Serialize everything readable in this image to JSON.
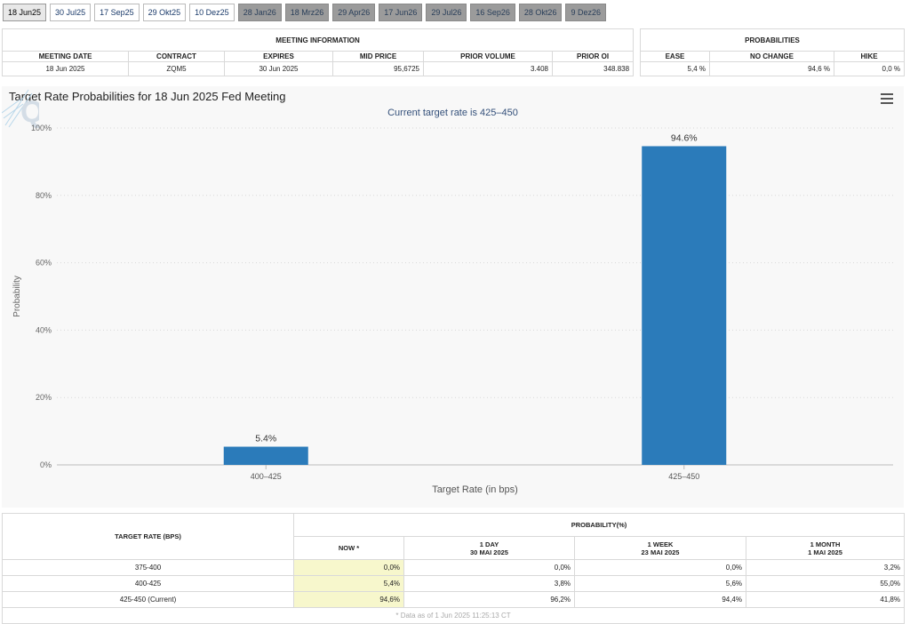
{
  "tabs": [
    {
      "label": "18 Jun25",
      "state": "selected"
    },
    {
      "label": "30 Jul25",
      "state": "enabled"
    },
    {
      "label": "17 Sep25",
      "state": "enabled"
    },
    {
      "label": "29 Okt25",
      "state": "enabled"
    },
    {
      "label": "10 Dez25",
      "state": "enabled"
    },
    {
      "label": "28 Jan26",
      "state": "disabled"
    },
    {
      "label": "18 Mrz26",
      "state": "disabled"
    },
    {
      "label": "29 Apr26",
      "state": "disabled"
    },
    {
      "label": "17 Jun26",
      "state": "disabled"
    },
    {
      "label": "29 Jul26",
      "state": "disabled"
    },
    {
      "label": "16 Sep26",
      "state": "disabled"
    },
    {
      "label": "28 Okt26",
      "state": "disabled"
    },
    {
      "label": "9 Dez26",
      "state": "disabled"
    }
  ],
  "meeting_info": {
    "title": "MEETING INFORMATION",
    "headers": [
      "MEETING DATE",
      "CONTRACT",
      "EXPIRES",
      "MID PRICE",
      "PRIOR VOLUME",
      "PRIOR OI"
    ],
    "row": [
      "18 Jun 2025",
      "ZQM5",
      "30 Jun 2025",
      "95,6725",
      "3.408",
      "348.838"
    ]
  },
  "probabilities": {
    "title": "PROBABILITIES",
    "headers": [
      "EASE",
      "NO CHANGE",
      "HIKE"
    ],
    "row": [
      "5,4 %",
      "94,6 %",
      "0,0 %"
    ]
  },
  "chart_data": {
    "type": "bar",
    "title": "Target Rate Probabilities for 18 Jun 2025 Fed Meeting",
    "subtitle": "Current target rate is 425–450",
    "categories": [
      "400–425",
      "425–450"
    ],
    "values": [
      5.4,
      94.6
    ],
    "data_labels": [
      "5.4%",
      "94.6%"
    ],
    "xlabel": "Target Rate (in bps)",
    "ylabel": "Probability",
    "ylim": [
      0,
      100
    ],
    "yticks": [
      0,
      20,
      40,
      60,
      80,
      100
    ],
    "ytick_labels": [
      "0%",
      "20%",
      "40%",
      "60%",
      "80%",
      "100%"
    ],
    "grid": true,
    "bar_color": "#2b7bba"
  },
  "rate_table": {
    "col_target": "TARGET RATE (BPS)",
    "col_prob": "PROBABILITY(%)",
    "sub_headers": [
      {
        "line1": "NOW *",
        "line2": ""
      },
      {
        "line1": "1 DAY",
        "line2": "30 MAI 2025"
      },
      {
        "line1": "1 WEEK",
        "line2": "23 MAI 2025"
      },
      {
        "line1": "1 MONTH",
        "line2": "1 MAI 2025"
      }
    ],
    "rows": [
      [
        "375-400",
        "0,0%",
        "0,0%",
        "0,0%",
        "3,2%"
      ],
      [
        "400-425",
        "5,4%",
        "3,8%",
        "5,6%",
        "55,0%"
      ],
      [
        "425-450 (Current)",
        "94,6%",
        "96,2%",
        "94,4%",
        "41,8%"
      ]
    ],
    "footnote": "* Data as of 1 Jun 2025 11:25:13 CT"
  }
}
